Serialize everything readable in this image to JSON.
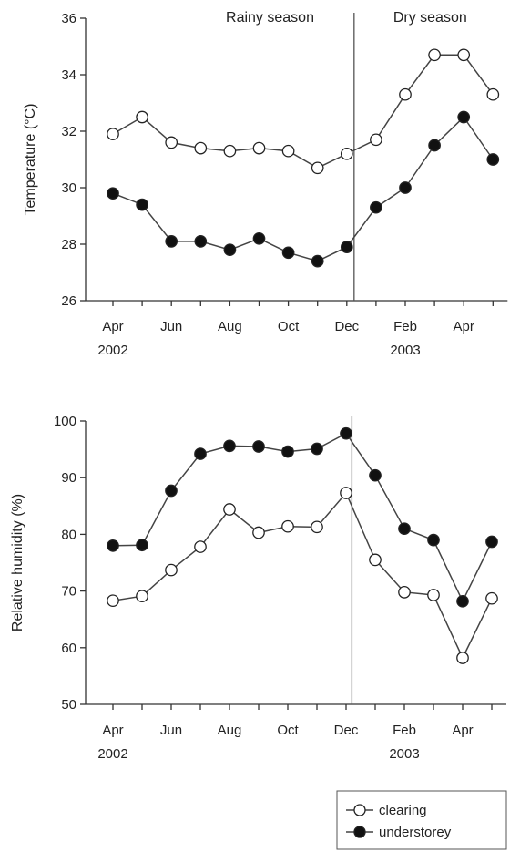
{
  "chart_data": [
    {
      "type": "line",
      "ylabel": "Temperature (°C)",
      "ylim": [
        26,
        36
      ],
      "yticks": [
        26,
        28,
        30,
        32,
        34,
        36
      ],
      "x_months": [
        "Apr 2002",
        "May 2002",
        "Jun 2002",
        "Jul 2002",
        "Aug 2002",
        "Sep 2002",
        "Oct 2002",
        "Nov 2002",
        "Dec 2002",
        "Jan 2003",
        "Feb 2003",
        "Mar 2003",
        "Apr 2003",
        "May 2003"
      ],
      "xtick_labels": [
        {
          "index": 0,
          "label": "Apr",
          "sublabel": "2002"
        },
        {
          "index": 2,
          "label": "Jun",
          "sublabel": ""
        },
        {
          "index": 4,
          "label": "Aug",
          "sublabel": ""
        },
        {
          "index": 6,
          "label": "Oct",
          "sublabel": ""
        },
        {
          "index": 8,
          "label": "Dec",
          "sublabel": ""
        },
        {
          "index": 10,
          "label": "Feb",
          "sublabel": "2003"
        },
        {
          "index": 12,
          "label": "Apr",
          "sublabel": ""
        }
      ],
      "season_divider_index": 8.25,
      "season_labels": {
        "left": "Rainy season",
        "right": "Dry season"
      },
      "series": [
        {
          "name": "clearing",
          "marker": "open",
          "values": [
            31.9,
            32.5,
            31.6,
            31.4,
            31.3,
            31.4,
            31.3,
            30.7,
            31.2,
            31.7,
            33.3,
            34.7,
            34.7,
            33.3
          ]
        },
        {
          "name": "understorey",
          "marker": "filled",
          "values": [
            29.8,
            29.4,
            28.1,
            28.1,
            27.8,
            28.2,
            27.7,
            27.4,
            27.9,
            29.3,
            30.0,
            31.5,
            32.5,
            31.0
          ]
        }
      ]
    },
    {
      "type": "line",
      "ylabel": "Relative humidity (%)",
      "ylim": [
        50,
        100
      ],
      "yticks": [
        50,
        60,
        70,
        80,
        90,
        100
      ],
      "x_months": [
        "Apr 2002",
        "May 2002",
        "Jun 2002",
        "Jul 2002",
        "Aug 2002",
        "Sep 2002",
        "Oct 2002",
        "Nov 2002",
        "Dec 2002",
        "Jan 2003",
        "Feb 2003",
        "Mar 2003",
        "Apr 2003",
        "May 2003"
      ],
      "xtick_labels": [
        {
          "index": 0,
          "label": "Apr",
          "sublabel": "2002"
        },
        {
          "index": 2,
          "label": "Jun",
          "sublabel": ""
        },
        {
          "index": 4,
          "label": "Aug",
          "sublabel": ""
        },
        {
          "index": 6,
          "label": "Oct",
          "sublabel": ""
        },
        {
          "index": 8,
          "label": "Dec",
          "sublabel": ""
        },
        {
          "index": 10,
          "label": "Feb",
          "sublabel": "2003"
        },
        {
          "index": 12,
          "label": "Apr",
          "sublabel": ""
        }
      ],
      "season_divider_index": 8.2,
      "series": [
        {
          "name": "clearing",
          "marker": "open",
          "values": [
            68.3,
            69.1,
            73.7,
            77.8,
            84.4,
            80.3,
            81.4,
            81.3,
            87.3,
            75.5,
            69.8,
            69.3,
            58.2,
            68.7
          ]
        },
        {
          "name": "understorey",
          "marker": "filled",
          "values": [
            78.0,
            78.1,
            87.7,
            94.2,
            95.6,
            95.5,
            94.6,
            95.1,
            97.8,
            90.4,
            81.0,
            79.0,
            68.2,
            78.7
          ]
        }
      ]
    }
  ],
  "legend": {
    "items": [
      {
        "label": "clearing",
        "marker": "open"
      },
      {
        "label": "understorey",
        "marker": "filled"
      }
    ]
  },
  "colors": {
    "line": "#444444",
    "marker_stroke": "#222222",
    "marker_open_fill": "#ffffff",
    "marker_filled": "#111111",
    "axis": "#333333"
  }
}
